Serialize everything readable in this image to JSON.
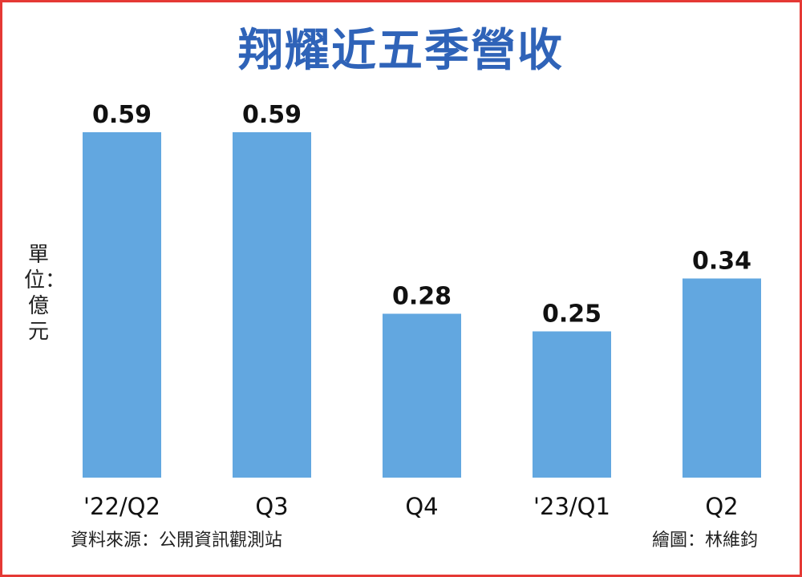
{
  "chart_data": {
    "type": "bar",
    "title": "翔耀近五季營收",
    "ylabel": "單位：億元",
    "categories": [
      "'22/Q2",
      "Q3",
      "Q4",
      "'23/Q1",
      "Q2"
    ],
    "values": [
      0.59,
      0.59,
      0.28,
      0.25,
      0.34
    ],
    "value_labels": [
      "0.59",
      "0.59",
      "0.28",
      "0.25",
      "0.34"
    ],
    "ylim": [
      0,
      0.72
    ],
    "grid": false,
    "bar_color": "#62a7e0"
  },
  "footer": {
    "source": "資料來源：公開資訊觀測站",
    "credit": "繪圖：林維鈞"
  }
}
